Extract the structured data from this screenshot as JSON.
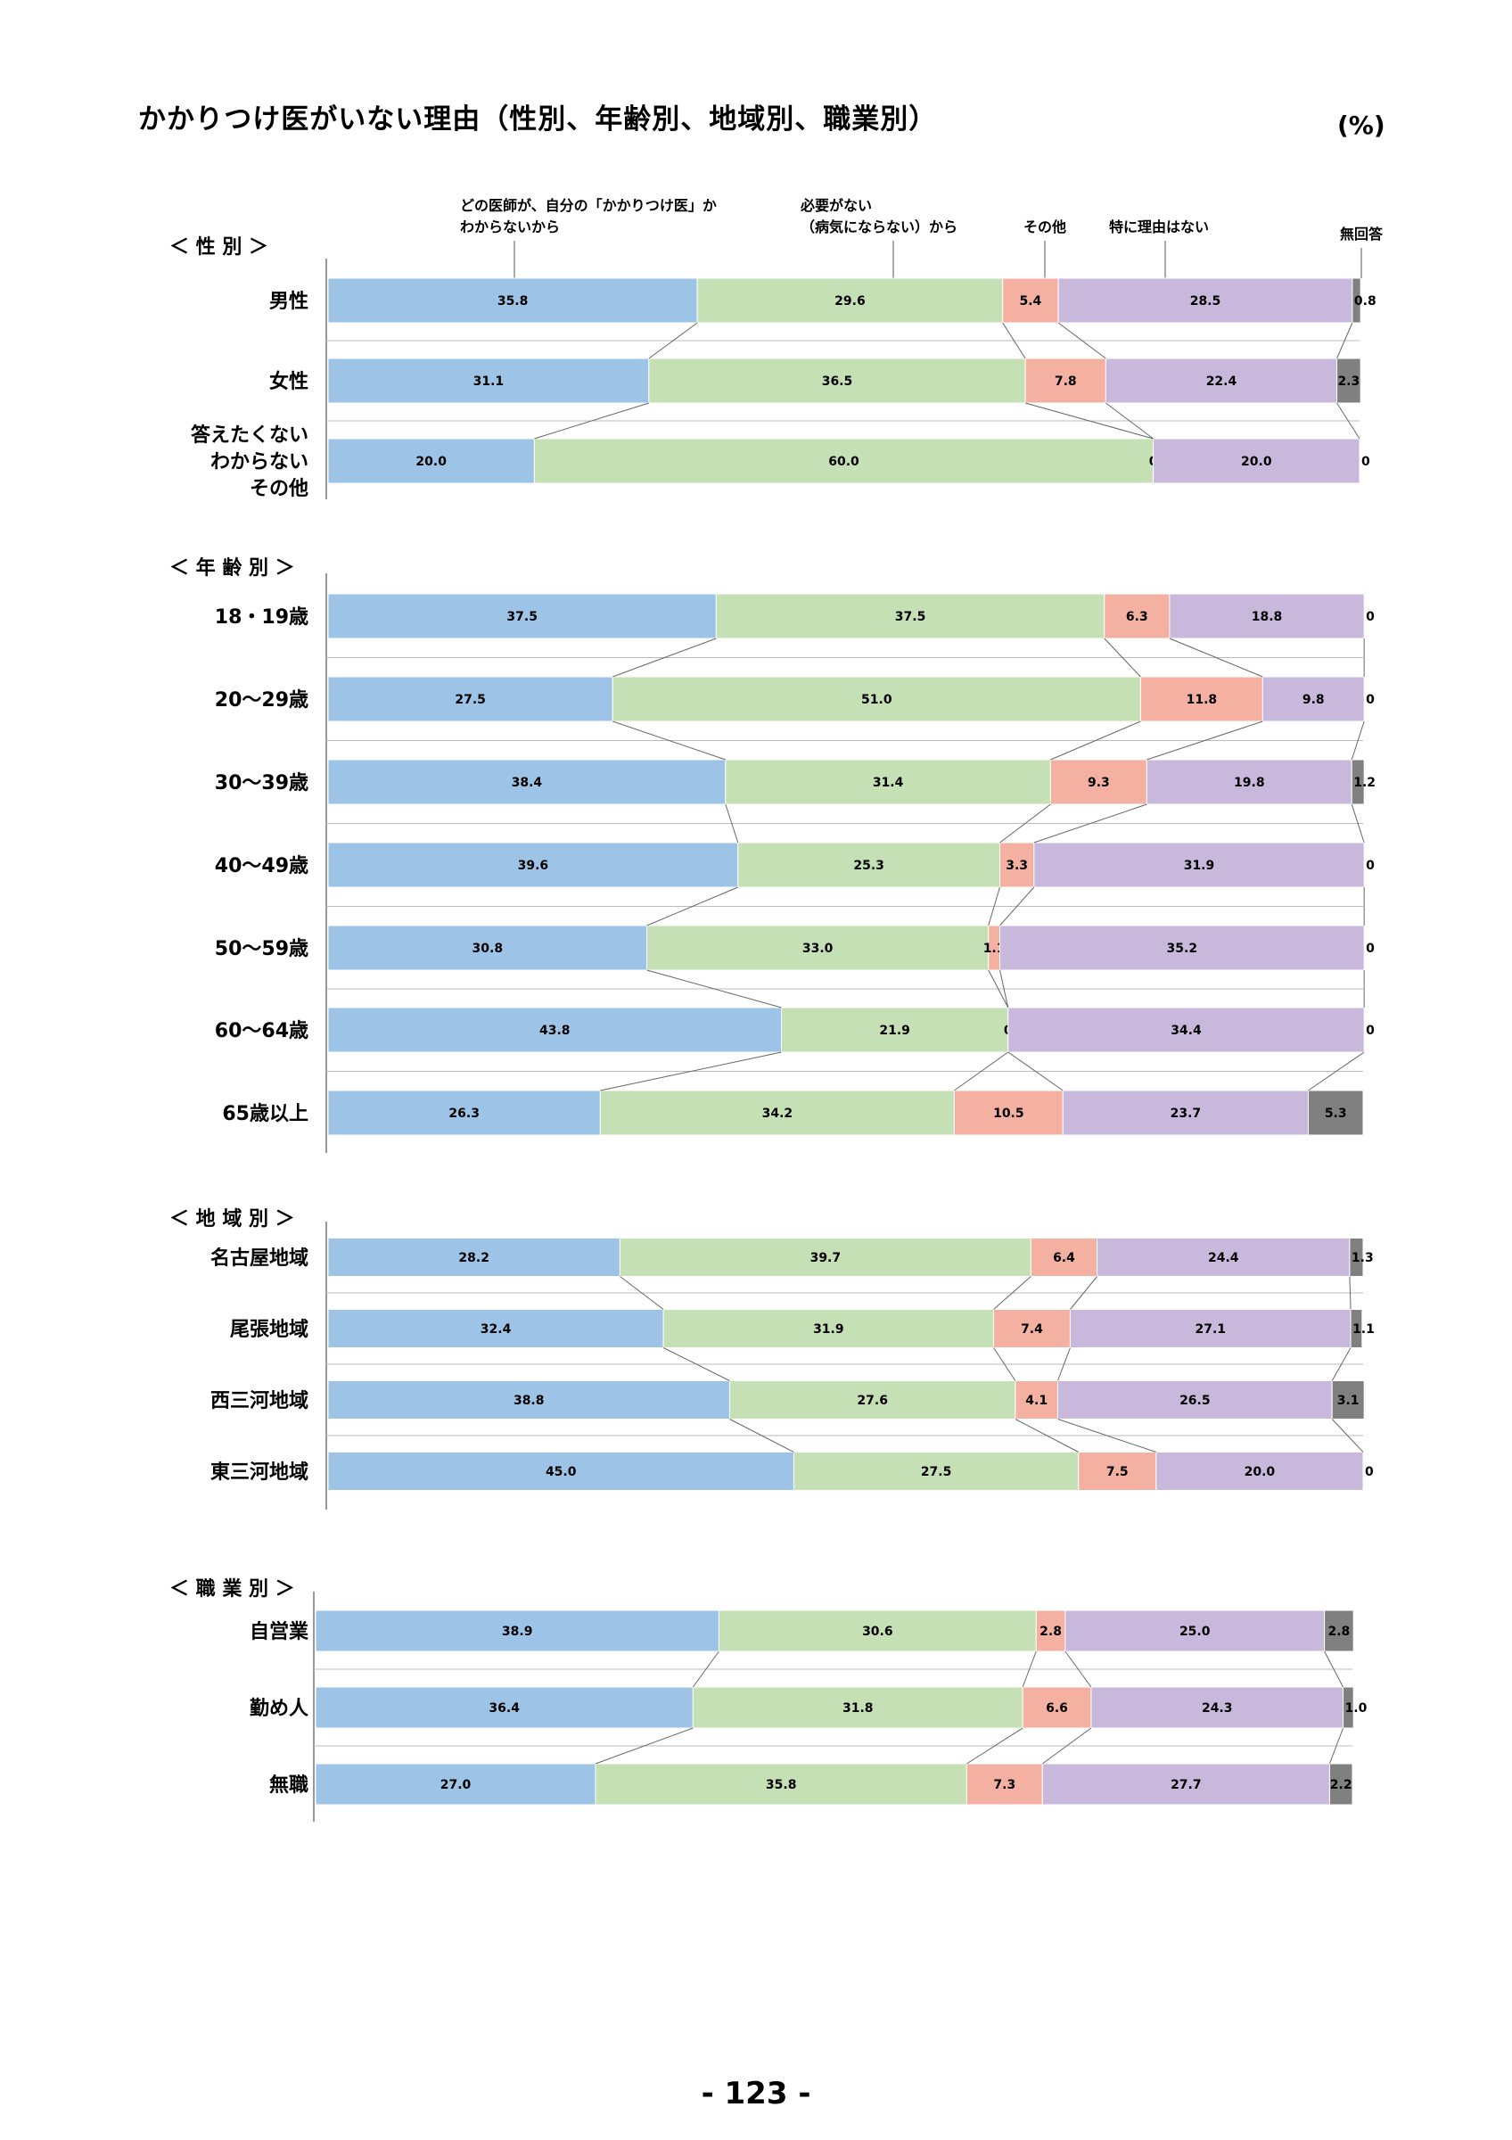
{
  "title": "かかりつけ医がいない理由（性別、年齢別、地域別、職業別）",
  "unit": "(%)",
  "page_number": "- 123 -",
  "colors": {
    "series": [
      "#9dc3e6",
      "#c5e0b4",
      "#f4b1a1",
      "#c7b8dc",
      "#808080"
    ]
  },
  "chart_data": {
    "type": "stacked-bar-100",
    "orientation": "horizontal",
    "series": [
      {
        "name": "どの医師が、自分の「かかりつけ医」か わからないから"
      },
      {
        "name": "必要がない （病気にならない）から"
      },
      {
        "name": "その他"
      },
      {
        "name": "特に理由はない"
      },
      {
        "name": "無回答"
      }
    ],
    "legend_labels": [
      [
        "どの医師が、自分の「かかりつけ医」か",
        "わからないから"
      ],
      [
        "必要がない",
        "（病気にならない）から"
      ],
      [
        "その他"
      ],
      [
        "特に理由はない"
      ],
      [
        "無回答"
      ]
    ],
    "groups": [
      {
        "label": "＜ 性 別 ＞",
        "rows": [
          {
            "label": [
              "男性"
            ],
            "values": [
              35.8,
              29.6,
              5.4,
              28.5,
              0.8
            ],
            "labels": [
              "35.8",
              "29.6",
              "5.4",
              "28.5",
              "0.8"
            ]
          },
          {
            "label": [
              "女性"
            ],
            "values": [
              31.1,
              36.5,
              7.8,
              22.4,
              2.3
            ],
            "labels": [
              "31.1",
              "36.5",
              "7.8",
              "22.4",
              "2.3"
            ]
          },
          {
            "label": [
              "答えたくない",
              "わからない",
              "その他"
            ],
            "values": [
              20.0,
              60.0,
              0,
              20.0,
              0
            ],
            "labels": [
              "20.0",
              "60.0",
              "0",
              "20.0",
              "0"
            ]
          }
        ]
      },
      {
        "label": "＜ 年 齢 別 ＞",
        "rows": [
          {
            "label": [
              "18・19歳"
            ],
            "values": [
              37.5,
              37.5,
              6.3,
              18.8,
              0
            ],
            "labels": [
              "37.5",
              "37.5",
              "6.3",
              "18.8",
              "0"
            ]
          },
          {
            "label": [
              "20〜29歳"
            ],
            "values": [
              27.5,
              51.0,
              11.8,
              9.8,
              0
            ],
            "labels": [
              "27.5",
              "51.0",
              "11.8",
              "9.8",
              "0"
            ]
          },
          {
            "label": [
              "30〜39歳"
            ],
            "values": [
              38.4,
              31.4,
              9.3,
              19.8,
              1.2
            ],
            "labels": [
              "38.4",
              "31.4",
              "9.3",
              "19.8",
              "1.2"
            ]
          },
          {
            "label": [
              "40〜49歳"
            ],
            "values": [
              39.6,
              25.3,
              3.3,
              31.9,
              0
            ],
            "labels": [
              "39.6",
              "25.3",
              "3.3",
              "31.9",
              "0"
            ]
          },
          {
            "label": [
              "50〜59歳"
            ],
            "values": [
              30.8,
              33.0,
              1.1,
              35.2,
              0
            ],
            "labels": [
              "30.8",
              "33.0",
              "1.1",
              "35.2",
              "0"
            ]
          },
          {
            "label": [
              "60〜64歳"
            ],
            "values": [
              43.8,
              21.9,
              0,
              34.4,
              0
            ],
            "labels": [
              "43.8",
              "21.9",
              "0",
              "34.4",
              "0"
            ]
          },
          {
            "label": [
              "65歳以上"
            ],
            "values": [
              26.3,
              34.2,
              10.5,
              23.7,
              5.3
            ],
            "labels": [
              "26.3",
              "34.2",
              "10.5",
              "23.7",
              "5.3"
            ]
          }
        ]
      },
      {
        "label": "＜ 地 域 別 ＞",
        "rows": [
          {
            "label": [
              "名古屋地域"
            ],
            "values": [
              28.2,
              39.7,
              6.4,
              24.4,
              1.3
            ],
            "labels": [
              "28.2",
              "39.7",
              "6.4",
              "24.4",
              "1.3"
            ]
          },
          {
            "label": [
              "尾張地域"
            ],
            "values": [
              32.4,
              31.9,
              7.4,
              27.1,
              1.1
            ],
            "labels": [
              "32.4",
              "31.9",
              "7.4",
              "27.1",
              "1.1"
            ]
          },
          {
            "label": [
              "西三河地域"
            ],
            "values": [
              38.8,
              27.6,
              4.1,
              26.5,
              3.1
            ],
            "labels": [
              "38.8",
              "27.6",
              "4.1",
              "26.5",
              "3.1"
            ]
          },
          {
            "label": [
              "東三河地域"
            ],
            "values": [
              45.0,
              27.5,
              7.5,
              20.0,
              0
            ],
            "labels": [
              "45.0",
              "27.5",
              "7.5",
              "20.0",
              "0"
            ]
          }
        ]
      },
      {
        "label": "＜ 職 業 別 ＞",
        "rows": [
          {
            "label": [
              "自営業"
            ],
            "values": [
              38.9,
              30.6,
              2.8,
              25.0,
              2.8
            ],
            "labels": [
              "38.9",
              "30.6",
              "2.8",
              "25.0",
              "2.8"
            ]
          },
          {
            "label": [
              "勤め人"
            ],
            "values": [
              36.4,
              31.8,
              6.6,
              24.3,
              1.0
            ],
            "labels": [
              "36.4",
              "31.8",
              "6.6",
              "24.3",
              "1.0"
            ]
          },
          {
            "label": [
              "無職"
            ],
            "values": [
              27.0,
              35.8,
              7.3,
              27.7,
              2.2
            ],
            "labels": [
              "27.0",
              "35.8",
              "7.3",
              "27.7",
              "2.2"
            ]
          }
        ]
      }
    ]
  }
}
